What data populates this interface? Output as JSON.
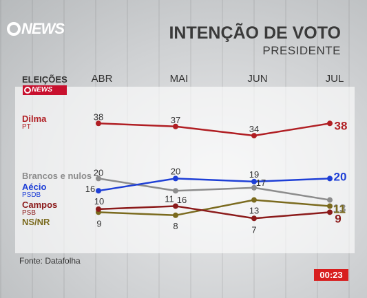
{
  "logo": {
    "text": "NEWS"
  },
  "title": "INTENÇÃO DE VOTO",
  "subtitle": "PRESIDENTE",
  "elections_label": "ELEIÇÕES",
  "elections_logo_text": "NEWS",
  "source": "Fonte: Datafolha",
  "timer": "00:23",
  "chart_data": {
    "type": "line",
    "x": [
      "ABR",
      "MAI",
      "JUN",
      "JUL"
    ],
    "ylim": [
      0,
      45
    ],
    "grid": false,
    "series": [
      {
        "name": "Dilma",
        "party": "PT",
        "color": "#b01e23",
        "values": [
          38,
          37,
          34,
          38
        ]
      },
      {
        "name": "Brancos e nulos",
        "party": "",
        "color": "#8c8c8c",
        "values": [
          20,
          16,
          17,
          13
        ]
      },
      {
        "name": "Aécio",
        "party": "PSDB",
        "color": "#1e3fd6",
        "values": [
          16,
          20,
          19,
          20
        ]
      },
      {
        "name": "Campos",
        "party": "PSB",
        "color": "#8b1a1a",
        "values": [
          10,
          11,
          7,
          9
        ]
      },
      {
        "name": "NS/NR",
        "party": "",
        "color": "#7a6a1e",
        "values": [
          9,
          8,
          13,
          11
        ]
      }
    ],
    "value_labels": [
      [
        "38",
        "37",
        "34",
        "38"
      ],
      [
        "20",
        "16",
        "17",
        "13"
      ],
      [
        "16",
        "20",
        "19",
        "20"
      ],
      [
        "10",
        "11",
        "7",
        "9"
      ],
      [
        "9",
        "8",
        "13",
        "11"
      ]
    ]
  }
}
